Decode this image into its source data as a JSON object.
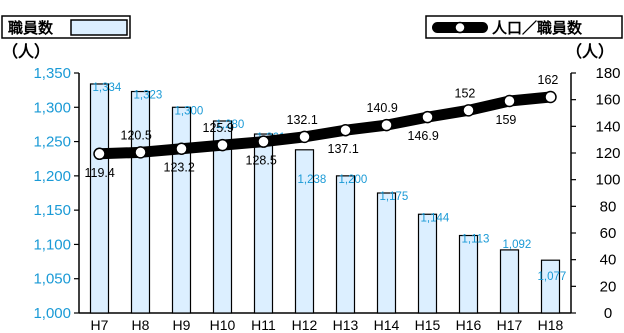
{
  "chart_data": {
    "type": "bar",
    "categories": [
      "H7",
      "H8",
      "H9",
      "H10",
      "H11",
      "H12",
      "H13",
      "H14",
      "H15",
      "H16",
      "H17",
      "H18"
    ],
    "series": [
      {
        "name": "職員数",
        "type": "bar",
        "axis": "left",
        "values": [
          1334,
          1323,
          1300,
          1280,
          1261,
          1238,
          1200,
          1175,
          1144,
          1113,
          1092,
          1077
        ],
        "labels": [
          "1,334",
          "1,323",
          "1,300",
          "1,280",
          "1,261",
          "1,238",
          "1,200",
          "1,175",
          "1,144",
          "1,113",
          "1,092",
          "1,077"
        ]
      },
      {
        "name": "人口／職員数",
        "type": "line",
        "axis": "right",
        "values": [
          119.4,
          120.5,
          123.2,
          125.9,
          128.5,
          132.1,
          137.1,
          140.9,
          146.9,
          152,
          159,
          162
        ],
        "labels": [
          "119.4",
          "120.5",
          "123.2",
          "125.9",
          "128.5",
          "132.1",
          "137.1",
          "140.9",
          "146.9",
          "152",
          "159",
          "162"
        ]
      }
    ],
    "left_axis": {
      "unit": "（人）",
      "ylim": [
        1000,
        1350
      ],
      "ticks": [
        1000,
        1050,
        1100,
        1150,
        1200,
        1250,
        1300,
        1350
      ],
      "tick_labels": [
        "1,000",
        "1,050",
        "1,100",
        "1,150",
        "1,200",
        "1,250",
        "1,300",
        "1,350"
      ]
    },
    "right_axis": {
      "unit": "（人）",
      "ylim": [
        0,
        180
      ],
      "ticks": [
        0,
        20,
        40,
        60,
        80,
        100,
        120,
        140,
        160,
        180
      ],
      "tick_labels": [
        "0",
        "20",
        "40",
        "60",
        "80",
        "100",
        "120",
        "140",
        "160",
        "180"
      ]
    },
    "legend": [
      {
        "label": "職員数",
        "placement": "top-left"
      },
      {
        "label": "人口／職員数",
        "placement": "top-right"
      }
    ],
    "grid": false,
    "colors": {
      "bar_fill": "#dcefff",
      "bar_stroke": "#000000",
      "bar_label": "#1a9ad6",
      "left_tick": "#1a9ad6",
      "line": "#000000",
      "marker_fill": "#ffffff"
    }
  }
}
